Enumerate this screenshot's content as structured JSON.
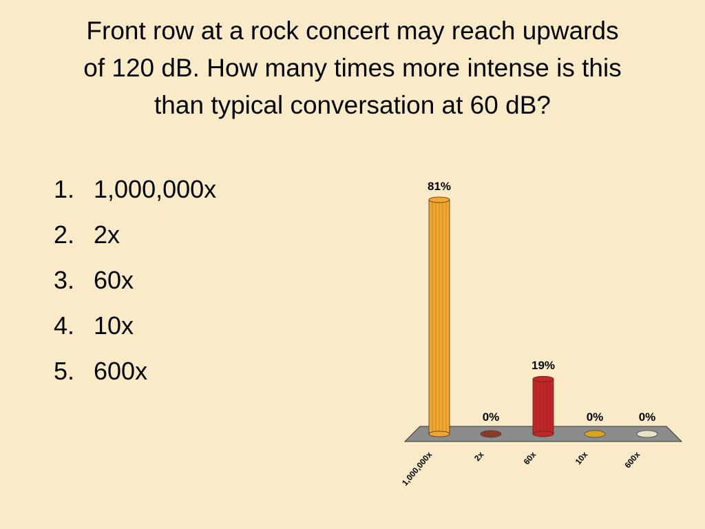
{
  "question": {
    "lines": [
      "Front row at a rock concert may reach upwards",
      "of 120 dB.  How many times more intense is this",
      "than typical conversation at 60 dB?"
    ]
  },
  "answers": [
    {
      "number": "1.",
      "label": "1,000,000x"
    },
    {
      "number": "2.",
      "label": "2x"
    },
    {
      "number": "3.",
      "label": "60x"
    },
    {
      "number": "4.",
      "label": "10x"
    },
    {
      "number": "5.",
      "label": "600x"
    }
  ],
  "chart_data": {
    "type": "bar",
    "categories": [
      "1,000,000x",
      "2x",
      "60x",
      "10x",
      "600x"
    ],
    "values": [
      81,
      0,
      19,
      0,
      0
    ],
    "data_labels": [
      "81%",
      "0%",
      "19%",
      "0%",
      "0%"
    ],
    "colors": [
      "#f0a830",
      "#8b3a2a",
      "#c0262a",
      "#d9a520",
      "#e8e2c4"
    ],
    "floor_color": "#8c8c8c",
    "ylim": [
      0,
      81
    ],
    "grid": false,
    "legend": "none"
  }
}
